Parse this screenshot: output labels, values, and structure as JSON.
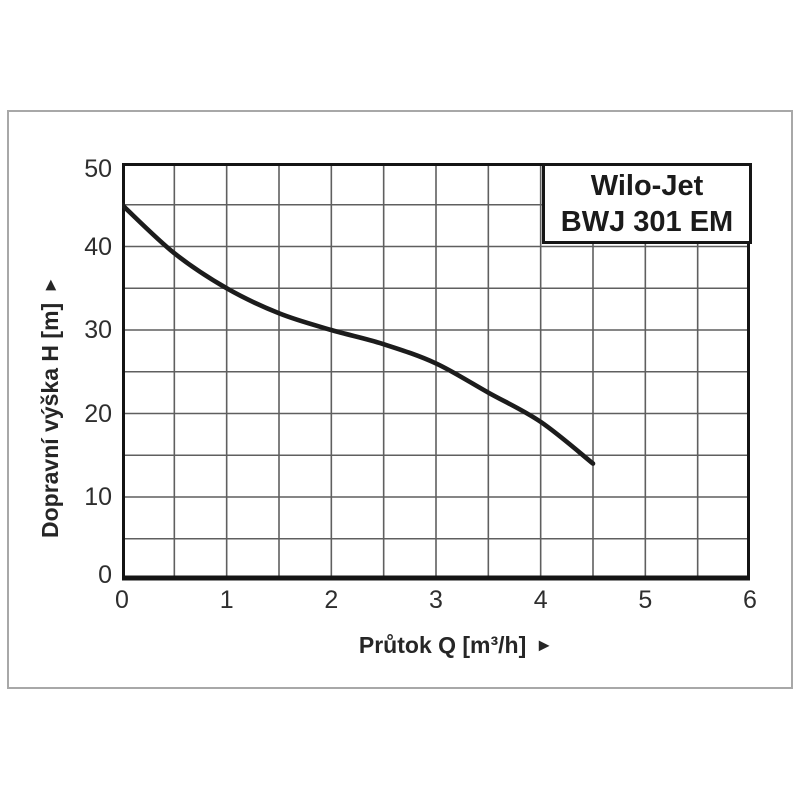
{
  "frame": {
    "border_color": "#a8a8a8"
  },
  "title_box": {
    "line1": "Wilo-Jet",
    "line2": "BWJ 301 EM"
  },
  "icons": {
    "axis_arrow": "►"
  },
  "chart_data": {
    "type": "line",
    "title": "Wilo-Jet BWJ 301 EM",
    "xlabel": "Průtok Q [m³/h]",
    "ylabel": "Dopravní výška H [m]",
    "xlim": [
      0,
      6
    ],
    "ylim": [
      0,
      50
    ],
    "x_major_ticks": [
      "0",
      "1",
      "2",
      "3",
      "4",
      "5",
      "6"
    ],
    "y_major_ticks": [
      "0",
      "10",
      "20",
      "30",
      "40",
      "50"
    ],
    "x_minor_step": 0.5,
    "y_minor_step": 5,
    "grid": true,
    "legend": "none",
    "series": [
      {
        "name": "pump-curve H(Q)",
        "x": [
          0,
          0.5,
          1,
          1.5,
          2,
          2.5,
          3,
          3.5,
          4,
          4.5
        ],
        "values": [
          45,
          39.2,
          35,
          32,
          30,
          28.3,
          26,
          22.5,
          19,
          14
        ],
        "color": "#1c1c1c"
      }
    ],
    "grid_color": "#5f5f5f",
    "axis_color": "#141414"
  }
}
